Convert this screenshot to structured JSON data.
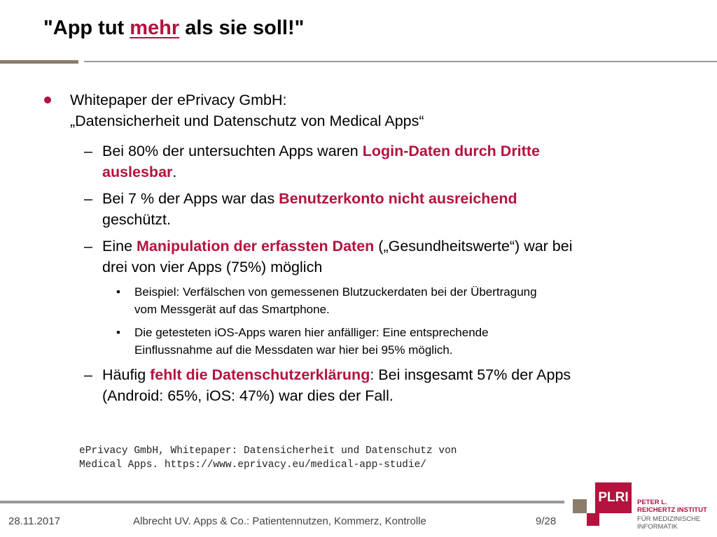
{
  "header": {
    "title": [
      {
        "text": "\"App tut ",
        "highlight": false
      },
      {
        "text": "mehr",
        "highlight": true
      },
      {
        "text": " als sie soll!\"",
        "highlight": false
      }
    ]
  },
  "body": {
    "bullet": {
      "lines": [
        [
          {
            "text": "Whitepaper der ePrivacy GmbH:",
            "highlight": false
          }
        ],
        [
          {
            "text": "„Datensicherheit und Datenschutz von Medical Apps“",
            "highlight": false
          }
        ]
      ]
    },
    "items": [
      {
        "level": 1,
        "lines": [
          [
            {
              "text": "Bei 80% der untersuchten Apps waren ",
              "highlight": false
            },
            {
              "text": "Login-Daten durch Dritte",
              "highlight": true
            }
          ],
          [
            {
              "text": "auslesbar",
              "highlight": true
            },
            {
              "text": ".",
              "highlight": false
            }
          ]
        ]
      },
      {
        "level": 1,
        "lines": [
          [
            {
              "text": "Bei 7 % der Apps war das ",
              "highlight": false
            },
            {
              "text": "Benutzerkonto nicht ausreichend",
              "highlight": true
            }
          ],
          [
            {
              "text": "geschützt.",
              "highlight": false
            }
          ]
        ]
      },
      {
        "level": 1,
        "lines": [
          [
            {
              "text": "Eine ",
              "highlight": false
            },
            {
              "text": "Manipulation der erfassten Daten",
              "highlight": true
            },
            {
              "text": " („Gesundheitswerte“) war bei",
              "highlight": false
            }
          ],
          [
            {
              "text": "drei von vier Apps (75%) möglich",
              "highlight": false
            }
          ]
        ]
      },
      {
        "level": 2,
        "lines": [
          [
            {
              "text": "Beispiel: Verfälschen von gemessenen Blutzuckerdaten bei der Übertragung",
              "highlight": false
            }
          ],
          [
            {
              "text": "vom Messgerät auf das Smartphone.",
              "highlight": false
            }
          ]
        ]
      },
      {
        "level": 2,
        "lines": [
          [
            {
              "text": "Die getesteten iOS-Apps waren hier anfälliger: Eine entsprechende",
              "highlight": false
            }
          ],
          [
            {
              "text": "Einflussnahme auf die Messdaten war hier bei 95% möglich.",
              "highlight": false
            }
          ]
        ]
      },
      {
        "level": 1,
        "lines": [
          [
            {
              "text": "Häufig ",
              "highlight": false
            },
            {
              "text": "fehlt die Datenschutzerklärung",
              "highlight": true
            },
            {
              "text": ": Bei insgesamt 57% der Apps",
              "highlight": false
            }
          ],
          [
            {
              "text": "(Android: 65%, iOS: 47%) war dies der Fall.",
              "highlight": false
            }
          ]
        ]
      }
    ]
  },
  "reference": [
    "ePrivacy GmbH, Whitepaper: Datensicherheit und Datenschutz von",
    "Medical Apps. https://www.eprivacy.eu/medical-app-studie/"
  ],
  "footer": {
    "date": "28.11.2017",
    "center": "Albrecht UV. Apps & Co.: Patientennutzen, Kommerz, Kontrolle",
    "page": "9/28"
  },
  "logo": {
    "mark": "PLRI",
    "lines": [
      "PETER L.",
      "REICHERTZ INSTITUT",
      "FÜR MEDIZINISCHE",
      "INFORMATIK"
    ]
  }
}
